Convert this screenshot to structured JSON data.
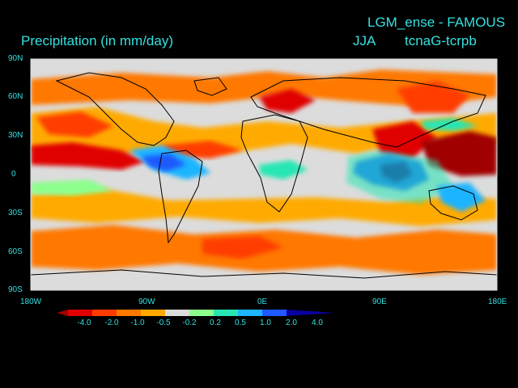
{
  "header": {
    "experiment": "LGM_ense - FAMOUS",
    "title": "Precipitation (in mm/day)",
    "season": "JJA",
    "difference": "tcnaG-tcrpb"
  },
  "axes": {
    "lat_labels": [
      "90N",
      "60N",
      "30N",
      "0",
      "30S",
      "60S",
      "90S"
    ],
    "lon_labels": [
      "180W",
      "90W",
      "0E",
      "90E",
      "180E"
    ]
  },
  "colorbar": {
    "levels": [
      "-4.0",
      "-2.0",
      "-1.0",
      "-0.5",
      "-0.2",
      "0.2",
      "0.5",
      "1.0",
      "2.0",
      "4.0"
    ],
    "colors": [
      "#a00000",
      "#e00000",
      "#ff3c00",
      "#ff7800",
      "#ffaa00",
      "#dcdcdc",
      "#8cff8c",
      "#28e6b4",
      "#1eb4ff",
      "#1e5aff",
      "#0a00a0"
    ]
  },
  "map_colors": {
    "ocean_background": "#dcdcdc",
    "coastline": "#000000"
  }
}
